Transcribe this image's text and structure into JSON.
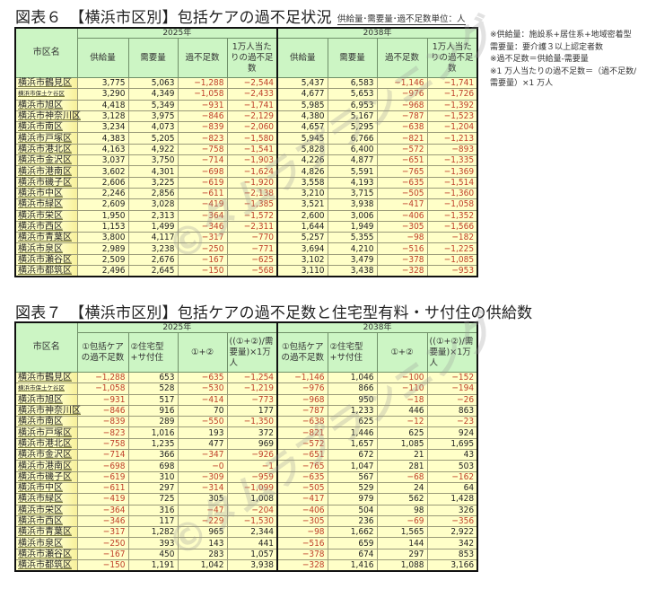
{
  "figure6": {
    "title": "図表６　【横浜市区別】包括ケアの過不足状況",
    "unit_note": "供給量･需要量･過不足数単位：人",
    "year_headers": [
      "2025年",
      "2038年"
    ],
    "columns": {
      "name": "市区名",
      "supply": "供給量",
      "demand": "需要量",
      "shortfall": "過不足数",
      "per10k": "1万人当たりの過不足数"
    },
    "rows": [
      {
        "name": "横浜市鶴見区",
        "s25": "3,775",
        "d25": "5,063",
        "g25": "−1,288",
        "p25": "−2,544",
        "s38": "5,437",
        "d38": "6,583",
        "g38": "−1,146",
        "p38": "−1,741"
      },
      {
        "name": "横浜市保土ケ谷区",
        "s25": "3,290",
        "d25": "4,349",
        "g25": "−1,058",
        "p25": "−2,433",
        "s38": "4,677",
        "d38": "5,653",
        "g38": "−976",
        "p38": "−1,726"
      },
      {
        "name": "横浜市旭区",
        "s25": "4,418",
        "d25": "5,349",
        "g25": "−931",
        "p25": "−1,741",
        "s38": "5,985",
        "d38": "6,953",
        "g38": "−968",
        "p38": "−1,392"
      },
      {
        "name": "横浜市神奈川区",
        "s25": "3,128",
        "d25": "3,975",
        "g25": "−846",
        "p25": "−2,129",
        "s38": "4,380",
        "d38": "5,167",
        "g38": "−787",
        "p38": "−1,523"
      },
      {
        "name": "横浜市南区",
        "s25": "3,234",
        "d25": "4,073",
        "g25": "−839",
        "p25": "−2,060",
        "s38": "4,657",
        "d38": "5,295",
        "g38": "−638",
        "p38": "−1,204"
      },
      {
        "name": "横浜市戸塚区",
        "s25": "4,383",
        "d25": "5,205",
        "g25": "−823",
        "p25": "−1,580",
        "s38": "5,945",
        "d38": "6,766",
        "g38": "−821",
        "p38": "−1,213"
      },
      {
        "name": "横浜市港北区",
        "s25": "4,163",
        "d25": "4,922",
        "g25": "−758",
        "p25": "−1,541",
        "s38": "5,828",
        "d38": "6,400",
        "g38": "−572",
        "p38": "−893"
      },
      {
        "name": "横浜市金沢区",
        "s25": "3,037",
        "d25": "3,750",
        "g25": "−714",
        "p25": "−1,903",
        "s38": "4,226",
        "d38": "4,877",
        "g38": "−651",
        "p38": "−1,335"
      },
      {
        "name": "横浜市港南区",
        "s25": "3,602",
        "d25": "4,301",
        "g25": "−698",
        "p25": "−1,624",
        "s38": "4,826",
        "d38": "5,591",
        "g38": "−765",
        "p38": "−1,369"
      },
      {
        "name": "横浜市磯子区",
        "s25": "2,606",
        "d25": "3,225",
        "g25": "−619",
        "p25": "−1,920",
        "s38": "3,558",
        "d38": "4,193",
        "g38": "−635",
        "p38": "−1,514"
      },
      {
        "name": "横浜市中区",
        "s25": "2,246",
        "d25": "2,856",
        "g25": "−611",
        "p25": "−2,138",
        "s38": "3,210",
        "d38": "3,715",
        "g38": "−505",
        "p38": "−1,360"
      },
      {
        "name": "横浜市緑区",
        "s25": "2,609",
        "d25": "3,028",
        "g25": "−419",
        "p25": "−1,385",
        "s38": "3,521",
        "d38": "3,938",
        "g38": "−417",
        "p38": "−1,058"
      },
      {
        "name": "横浜市栄区",
        "s25": "1,950",
        "d25": "2,313",
        "g25": "−364",
        "p25": "−1,572",
        "s38": "2,600",
        "d38": "3,006",
        "g38": "−406",
        "p38": "−1,352"
      },
      {
        "name": "横浜市西区",
        "s25": "1,153",
        "d25": "1,499",
        "g25": "−346",
        "p25": "−2,311",
        "s38": "1,644",
        "d38": "1,949",
        "g38": "−305",
        "p38": "−1,566"
      },
      {
        "name": "横浜市青葉区",
        "s25": "3,800",
        "d25": "4,117",
        "g25": "−317",
        "p25": "−770",
        "s38": "5,257",
        "d38": "5,355",
        "g38": "−98",
        "p38": "−182"
      },
      {
        "name": "横浜市泉区",
        "s25": "2,989",
        "d25": "3,238",
        "g25": "−250",
        "p25": "−771",
        "s38": "3,694",
        "d38": "4,210",
        "g38": "−516",
        "p38": "−1,225"
      },
      {
        "name": "横浜市瀬谷区",
        "s25": "2,509",
        "d25": "2,676",
        "g25": "−167",
        "p25": "−625",
        "s38": "3,102",
        "d38": "3,479",
        "g38": "−378",
        "p38": "−1,085"
      },
      {
        "name": "横浜市都筑区",
        "s25": "2,496",
        "d25": "2,645",
        "g25": "−150",
        "p25": "−568",
        "s38": "3,110",
        "d38": "3,438",
        "g38": "−328",
        "p38": "−953"
      }
    ]
  },
  "notes": [
    "※供給量：施設系+居住系+地域密着型　需要量：要介護３以上認定者数",
    "※過不足数＝供給量-需要量",
    "※1 万人当たりの過不足数＝（過不足数/需要量）×1 万人"
  ],
  "figure7": {
    "title": "図表７　【横浜市区別】包括ケアの過不足数と住宅型有料・サ付住の供給数",
    "year_headers": [
      "2025年",
      "2038年"
    ],
    "columns": {
      "name": "市区名",
      "c1": "①包括ケアの過不足数",
      "c2": "②住宅型+サ付住",
      "c3": "①+②",
      "c4": "((①+②)/需要量)×1万人"
    },
    "rows": [
      {
        "name": "横浜市鶴見区",
        "a25": "−1,288",
        "b25": "653",
        "c25": "−635",
        "e25": "−1,254",
        "a38": "−1,146",
        "b38": "1,046",
        "c38": "−100",
        "e38": "−152"
      },
      {
        "name": "横浜市保土ケ谷区",
        "a25": "−1,058",
        "b25": "528",
        "c25": "−530",
        "e25": "−1,219",
        "a38": "−976",
        "b38": "866",
        "c38": "−110",
        "e38": "−194"
      },
      {
        "name": "横浜市旭区",
        "a25": "−931",
        "b25": "517",
        "c25": "−414",
        "e25": "−773",
        "a38": "−968",
        "b38": "950",
        "c38": "−18",
        "e38": "−26"
      },
      {
        "name": "横浜市神奈川区",
        "a25": "−846",
        "b25": "916",
        "c25": "70",
        "e25": "177",
        "a38": "−787",
        "b38": "1,233",
        "c38": "446",
        "e38": "863"
      },
      {
        "name": "横浜市南区",
        "a25": "−839",
        "b25": "289",
        "c25": "−550",
        "e25": "−1,350",
        "a38": "−638",
        "b38": "625",
        "c38": "−12",
        "e38": "−23"
      },
      {
        "name": "横浜市戸塚区",
        "a25": "−823",
        "b25": "1,016",
        "c25": "193",
        "e25": "372",
        "a38": "−821",
        "b38": "1,446",
        "c38": "625",
        "e38": "924"
      },
      {
        "name": "横浜市港北区",
        "a25": "−758",
        "b25": "1,235",
        "c25": "477",
        "e25": "969",
        "a38": "−572",
        "b38": "1,657",
        "c38": "1,085",
        "e38": "1,695"
      },
      {
        "name": "横浜市金沢区",
        "a25": "−714",
        "b25": "366",
        "c25": "−347",
        "e25": "−926",
        "a38": "−651",
        "b38": "672",
        "c38": "21",
        "e38": "43"
      },
      {
        "name": "横浜市港南区",
        "a25": "−698",
        "b25": "698",
        "c25": "−0",
        "e25": "−1",
        "a38": "−765",
        "b38": "1,047",
        "c38": "281",
        "e38": "503"
      },
      {
        "name": "横浜市磯子区",
        "a25": "−619",
        "b25": "310",
        "c25": "−309",
        "e25": "−959",
        "a38": "−635",
        "b38": "567",
        "c38": "−68",
        "e38": "−162"
      },
      {
        "name": "横浜市中区",
        "a25": "−611",
        "b25": "297",
        "c25": "−314",
        "e25": "−1,099",
        "a38": "−505",
        "b38": "529",
        "c38": "24",
        "e38": "64"
      },
      {
        "name": "横浜市緑区",
        "a25": "−419",
        "b25": "725",
        "c25": "305",
        "e25": "1,008",
        "a38": "−417",
        "b38": "979",
        "c38": "562",
        "e38": "1,428"
      },
      {
        "name": "横浜市栄区",
        "a25": "−364",
        "b25": "316",
        "c25": "−47",
        "e25": "−204",
        "a38": "−406",
        "b38": "504",
        "c38": "98",
        "e38": "326"
      },
      {
        "name": "横浜市西区",
        "a25": "−346",
        "b25": "117",
        "c25": "−229",
        "e25": "−1,530",
        "a38": "−305",
        "b38": "236",
        "c38": "−69",
        "e38": "−356"
      },
      {
        "name": "横浜市青葉区",
        "a25": "−317",
        "b25": "1,282",
        "c25": "965",
        "e25": "2,344",
        "a38": "−98",
        "b38": "1,662",
        "c38": "1,565",
        "e38": "2,922"
      },
      {
        "name": "横浜市泉区",
        "a25": "−250",
        "b25": "393",
        "c25": "143",
        "e25": "441",
        "a38": "−516",
        "b38": "659",
        "c38": "144",
        "e38": "342"
      },
      {
        "name": "横浜市瀬谷区",
        "a25": "−167",
        "b25": "450",
        "c25": "283",
        "e25": "1,057",
        "a38": "−378",
        "b38": "674",
        "c38": "297",
        "e38": "853"
      },
      {
        "name": "横浜市都筑区",
        "a25": "−150",
        "b25": "1,191",
        "c25": "1,042",
        "e25": "3,938",
        "a38": "−328",
        "b38": "1,416",
        "c38": "1,088",
        "e38": "3,166"
      }
    ]
  },
  "watermark": "©タムラプランニング",
  "colors": {
    "header_bg": "#ccf5c4",
    "cell_bg": "#ffffc8",
    "negative_text": "#c0402a",
    "border_dark": "#111111"
  }
}
